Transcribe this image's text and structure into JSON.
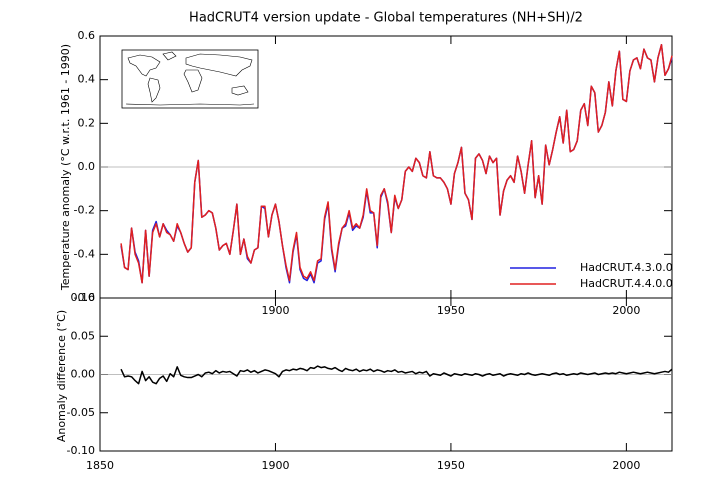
{
  "chart_data": [
    {
      "type": "line",
      "title": "HadCRUT4 version update - Global temperatures (NH+SH)/2",
      "y_label": "Temperature anomaly (°C w.r.t. 1961 - 1990)",
      "xlim": [
        1850,
        2013
      ],
      "xticks": [
        1900,
        1950,
        2000
      ],
      "ylim": [
        -0.6,
        0.6
      ],
      "yticks": [
        0.6,
        0.4,
        0.2,
        {
          "value": 0,
          "label": "0.0"
        },
        -0.2,
        -0.4,
        -0.6
      ],
      "legend": "lower right",
      "x": [
        1856,
        1857,
        1858,
        1859,
        1860,
        1861,
        1862,
        1863,
        1864,
        1865,
        1866,
        1867,
        1868,
        1869,
        1870,
        1871,
        1872,
        1873,
        1874,
        1875,
        1876,
        1877,
        1878,
        1879,
        1880,
        1881,
        1882,
        1883,
        1884,
        1885,
        1886,
        1887,
        1888,
        1889,
        1890,
        1891,
        1892,
        1893,
        1894,
        1895,
        1896,
        1897,
        1898,
        1899,
        1900,
        1901,
        1902,
        1903,
        1904,
        1905,
        1906,
        1907,
        1908,
        1909,
        1910,
        1911,
        1912,
        1913,
        1914,
        1915,
        1916,
        1917,
        1918,
        1919,
        1920,
        1921,
        1922,
        1923,
        1924,
        1925,
        1926,
        1927,
        1928,
        1929,
        1930,
        1931,
        1932,
        1933,
        1934,
        1935,
        1936,
        1937,
        1938,
        1939,
        1940,
        1941,
        1942,
        1943,
        1944,
        1945,
        1946,
        1947,
        1948,
        1949,
        1950,
        1951,
        1952,
        1953,
        1954,
        1955,
        1956,
        1957,
        1958,
        1959,
        1960,
        1961,
        1962,
        1963,
        1964,
        1965,
        1966,
        1967,
        1968,
        1969,
        1970,
        1971,
        1972,
        1973,
        1974,
        1975,
        1976,
        1977,
        1978,
        1979,
        1980,
        1981,
        1982,
        1983,
        1984,
        1985,
        1986,
        1987,
        1988,
        1989,
        1990,
        1991,
        1992,
        1993,
        1994,
        1995,
        1996,
        1997,
        1998,
        1999,
        2000,
        2001,
        2002,
        2003,
        2004,
        2005,
        2006,
        2007,
        2008,
        2009,
        2010,
        2011,
        2012,
        2013
      ],
      "series": [
        {
          "name": "HadCRUT.4.3.0.0",
          "color": "#2020e0",
          "values": [
            -0.36,
            -0.46,
            -0.47,
            -0.28,
            -0.39,
            -0.43,
            -0.53,
            -0.29,
            -0.5,
            -0.29,
            -0.25,
            -0.32,
            -0.26,
            -0.29,
            -0.31,
            -0.34,
            -0.27,
            -0.3,
            -0.35,
            -0.39,
            -0.37,
            -0.07,
            0.03,
            -0.23,
            -0.22,
            -0.2,
            -0.21,
            -0.28,
            -0.38,
            -0.36,
            -0.35,
            -0.4,
            -0.29,
            -0.17,
            -0.4,
            -0.33,
            -0.42,
            -0.44,
            -0.38,
            -0.37,
            -0.18,
            -0.19,
            -0.32,
            -0.22,
            -0.17,
            -0.25,
            -0.36,
            -0.46,
            -0.53,
            -0.39,
            -0.31,
            -0.47,
            -0.51,
            -0.52,
            -0.49,
            -0.53,
            -0.44,
            -0.43,
            -0.24,
            -0.17,
            -0.38,
            -0.48,
            -0.36,
            -0.28,
            -0.27,
            -0.21,
            -0.29,
            -0.27,
            -0.28,
            -0.23,
            -0.11,
            -0.21,
            -0.21,
            -0.37,
            -0.14,
            -0.1,
            -0.17,
            -0.3,
            -0.14,
            -0.19,
            -0.15,
            -0.02,
            0,
            -0.02,
            0.04,
            0.02,
            -0.04,
            -0.05,
            0.07,
            -0.04,
            -0.05,
            -0.05,
            -0.07,
            -0.1,
            -0.17,
            -0.03,
            0.02,
            0.09,
            -0.12,
            -0.15,
            -0.24,
            0.04,
            0.06,
            0.03,
            -0.03,
            0.05,
            0.02,
            0.04,
            -0.22,
            -0.11,
            -0.06,
            -0.04,
            -0.07,
            0.05,
            -0.02,
            -0.12,
            0.01,
            0.12,
            -0.14,
            -0.04,
            -0.17,
            0.1,
            0.01,
            0.08,
            0.16,
            0.23,
            0.11,
            0.26,
            0.07,
            0.08,
            0.12,
            0.26,
            0.29,
            0.19,
            0.37,
            0.34,
            0.16,
            0.19,
            0.25,
            0.39,
            0.28,
            0.44,
            0.53,
            0.31,
            0.3,
            0.44,
            0.49,
            0.5,
            0.45,
            0.54,
            0.5,
            0.49,
            0.39,
            0.5,
            0.56,
            0.42,
            0.45,
            0.5
          ]
        },
        {
          "name": "HadCRUT.4.4.0.0",
          "color": "#e02020",
          "values": [
            -0.35,
            -0.46,
            -0.47,
            -0.28,
            -0.4,
            -0.44,
            -0.53,
            -0.29,
            -0.5,
            -0.3,
            -0.26,
            -0.32,
            -0.26,
            -0.3,
            -0.31,
            -0.34,
            -0.26,
            -0.3,
            -0.35,
            -0.39,
            -0.37,
            -0.07,
            0.03,
            -0.23,
            -0.22,
            -0.2,
            -0.21,
            -0.28,
            -0.38,
            -0.36,
            -0.35,
            -0.4,
            -0.29,
            -0.17,
            -0.4,
            -0.33,
            -0.41,
            -0.44,
            -0.38,
            -0.37,
            -0.18,
            -0.18,
            -0.32,
            -0.22,
            -0.17,
            -0.25,
            -0.36,
            -0.45,
            -0.52,
            -0.38,
            -0.3,
            -0.46,
            -0.5,
            -0.51,
            -0.48,
            -0.52,
            -0.43,
            -0.42,
            -0.23,
            -0.16,
            -0.37,
            -0.47,
            -0.35,
            -0.28,
            -0.26,
            -0.2,
            -0.28,
            -0.26,
            -0.28,
            -0.22,
            -0.1,
            -0.2,
            -0.21,
            -0.36,
            -0.13,
            -0.1,
            -0.16,
            -0.3,
            -0.13,
            -0.19,
            -0.15,
            -0.02,
            0,
            -0.02,
            0.04,
            0.02,
            -0.04,
            -0.05,
            0.07,
            -0.04,
            -0.05,
            -0.05,
            -0.07,
            -0.1,
            -0.17,
            -0.03,
            0.02,
            0.09,
            -0.12,
            -0.15,
            -0.24,
            0.04,
            0.06,
            0.03,
            -0.03,
            0.05,
            0.02,
            0.04,
            -0.22,
            -0.11,
            -0.06,
            -0.04,
            -0.07,
            0.05,
            -0.02,
            -0.12,
            0.01,
            0.12,
            -0.14,
            -0.04,
            -0.17,
            0.1,
            0.01,
            0.08,
            0.16,
            0.23,
            0.11,
            0.26,
            0.07,
            0.08,
            0.12,
            0.26,
            0.29,
            0.19,
            0.37,
            0.34,
            0.16,
            0.19,
            0.25,
            0.39,
            0.28,
            0.44,
            0.53,
            0.31,
            0.3,
            0.44,
            0.49,
            0.5,
            0.45,
            0.54,
            0.5,
            0.49,
            0.39,
            0.5,
            0.56,
            0.42,
            0.45,
            0.51
          ]
        }
      ]
    },
    {
      "type": "line",
      "y_label": "Anomaly difference (°C)",
      "xlim": [
        1850,
        2013
      ],
      "xticks": [
        1850,
        1900,
        1950,
        2000
      ],
      "ylim": [
        -0.1,
        0.1
      ],
      "yticks": [
        {
          "value": 0.1,
          "label": "0.10"
        },
        0.05,
        {
          "value": 0,
          "label": "0.00"
        },
        -0.05,
        {
          "value": -0.1,
          "label": "-0.10"
        }
      ],
      "color": "#000000",
      "values": [
        0.007,
        -0.003,
        -0.002,
        -0.003,
        -0.008,
        -0.012,
        0.004,
        -0.008,
        -0.003,
        -0.01,
        -0.012,
        -0.005,
        -0.002,
        -0.009,
        0.001,
        -0.003,
        0.01,
        -0.001,
        -0.003,
        -0.004,
        -0.004,
        -0.002,
        0.0,
        -0.003,
        0.002,
        0.003,
        0.001,
        0.005,
        0.002,
        0.004,
        0.003,
        0.004,
        0.001,
        -0.002,
        0.005,
        0.004,
        0.006,
        0.003,
        0.005,
        0.002,
        0.004,
        0.006,
        0.005,
        0.003,
        0.001,
        -0.003,
        0.004,
        0.006,
        0.005,
        0.007,
        0.006,
        0.008,
        0.007,
        0.005,
        0.009,
        0.008,
        0.011,
        0.009,
        0.01,
        0.008,
        0.007,
        0.009,
        0.006,
        0.004,
        0.008,
        0.006,
        0.005,
        0.007,
        0.004,
        0.006,
        0.005,
        0.007,
        0.004,
        0.006,
        0.005,
        0.003,
        0.005,
        0.004,
        0.006,
        0.003,
        0.004,
        0.002,
        0.003,
        0.004,
        0.001,
        0.003,
        0.002,
        0.004,
        -0.002,
        0.001,
        0.0,
        -0.001,
        0.002,
        0.0,
        -0.002,
        0.001,
        0.0,
        -0.001,
        0.001,
        0.0,
        -0.001,
        0.001,
        0.0,
        -0.002,
        0.0,
        0.001,
        -0.001,
        0.0,
        0.001,
        -0.002,
        0.0,
        0.001,
        0.0,
        -0.001,
        0.001,
        0.0,
        0.002,
        0.0,
        -0.001,
        0.0,
        0.001,
        0.0,
        -0.001,
        0.001,
        0.002,
        0.0,
        0.001,
        -0.001,
        0.0,
        0.001,
        0.0,
        0.002,
        0.001,
        0.0,
        0.001,
        0.002,
        0.0,
        0.001,
        0.002,
        0.001,
        0.002,
        0.001,
        0.003,
        0.002,
        0.001,
        0.002,
        0.003,
        0.002,
        0.001,
        0.002,
        0.003,
        0.002,
        0.001,
        0.002,
        0.003,
        0.004,
        0.003,
        0.007
      ]
    }
  ]
}
